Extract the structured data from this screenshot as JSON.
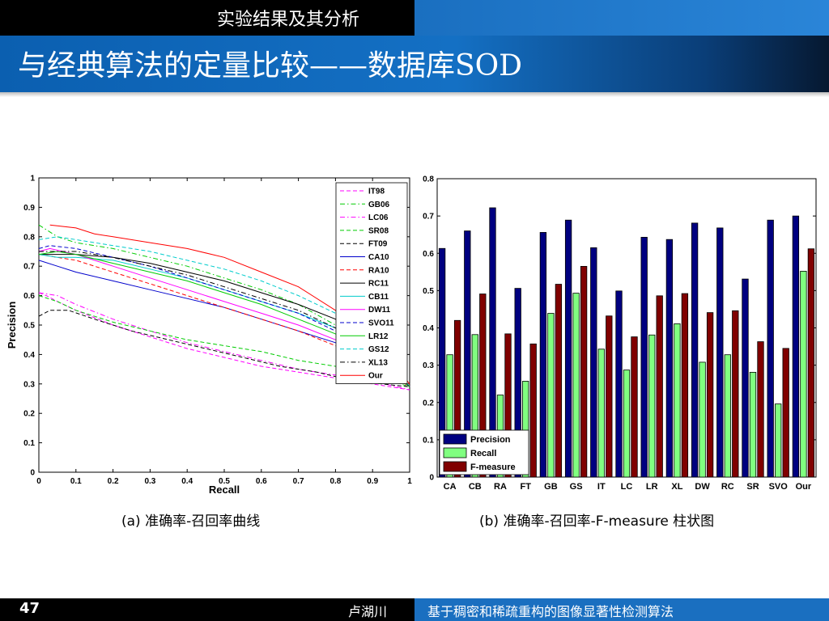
{
  "header": {
    "section_title": "实验结果及其分析",
    "slide_title": "与经典算法的定量比较——数据库SOD"
  },
  "captions": {
    "left": "(a) 准确率-召回率曲线",
    "right": "(b) 准确率-召回率-F-measure 柱状图"
  },
  "footer": {
    "page_number": "47",
    "author": "卢湖川",
    "title": "基于稠密和稀疏重构的图像显著性检测算法"
  },
  "chart_data": [
    {
      "type": "line",
      "xlabel": "Recall",
      "ylabel": "Precision",
      "xlim": [
        0,
        1
      ],
      "ylim": [
        0,
        1
      ],
      "xticks": [
        "0",
        "0.1",
        "0.2",
        "0.3",
        "0.4",
        "0.5",
        "0.6",
        "0.7",
        "0.8",
        "0.9",
        "1"
      ],
      "yticks": [
        "0",
        "0.1",
        "0.2",
        "0.3",
        "0.4",
        "0.5",
        "0.6",
        "0.7",
        "0.8",
        "0.9",
        "1"
      ],
      "grid": false,
      "legend_position": "top-right",
      "series": [
        {
          "name": "IT98",
          "color": "#ff00ff",
          "dash": "dashed",
          "points": [
            [
              0.0,
              0.61
            ],
            [
              0.02,
              0.6
            ],
            [
              0.05,
              0.58
            ],
            [
              0.1,
              0.55
            ],
            [
              0.2,
              0.5
            ],
            [
              0.3,
              0.46
            ],
            [
              0.4,
              0.42
            ],
            [
              0.5,
              0.39
            ],
            [
              0.6,
              0.36
            ],
            [
              0.7,
              0.34
            ],
            [
              0.8,
              0.32
            ],
            [
              0.9,
              0.3
            ],
            [
              1.0,
              0.28
            ]
          ]
        },
        {
          "name": "GB06",
          "color": "#00cc00",
          "dash": "dashdot",
          "points": [
            [
              0.0,
              0.84
            ],
            [
              0.05,
              0.8
            ],
            [
              0.1,
              0.78
            ],
            [
              0.2,
              0.76
            ],
            [
              0.3,
              0.73
            ],
            [
              0.4,
              0.7
            ],
            [
              0.5,
              0.66
            ],
            [
              0.6,
              0.62
            ],
            [
              0.7,
              0.57
            ],
            [
              0.8,
              0.5
            ],
            [
              0.9,
              0.4
            ],
            [
              1.0,
              0.29
            ]
          ]
        },
        {
          "name": "LC06",
          "color": "#ff00ff",
          "dash": "dashdot",
          "points": [
            [
              0.0,
              0.61
            ],
            [
              0.05,
              0.6
            ],
            [
              0.1,
              0.57
            ],
            [
              0.2,
              0.52
            ],
            [
              0.3,
              0.48
            ],
            [
              0.4,
              0.44
            ],
            [
              0.5,
              0.41
            ],
            [
              0.6,
              0.38
            ],
            [
              0.7,
              0.35
            ],
            [
              0.8,
              0.33
            ],
            [
              0.9,
              0.31
            ],
            [
              1.0,
              0.28
            ]
          ]
        },
        {
          "name": "SR08",
          "color": "#00cc00",
          "dash": "dashed",
          "points": [
            [
              0.0,
              0.6
            ],
            [
              0.05,
              0.58
            ],
            [
              0.1,
              0.55
            ],
            [
              0.2,
              0.51
            ],
            [
              0.3,
              0.48
            ],
            [
              0.4,
              0.45
            ],
            [
              0.5,
              0.43
            ],
            [
              0.6,
              0.41
            ],
            [
              0.7,
              0.38
            ],
            [
              0.8,
              0.36
            ],
            [
              0.9,
              0.33
            ],
            [
              1.0,
              0.29
            ]
          ]
        },
        {
          "name": "FT09",
          "color": "#000000",
          "dash": "dashed",
          "points": [
            [
              0.0,
              0.53
            ],
            [
              0.03,
              0.55
            ],
            [
              0.08,
              0.55
            ],
            [
              0.15,
              0.52
            ],
            [
              0.25,
              0.48
            ],
            [
              0.35,
              0.45
            ],
            [
              0.45,
              0.42
            ],
            [
              0.55,
              0.39
            ],
            [
              0.65,
              0.36
            ],
            [
              0.75,
              0.34
            ],
            [
              0.85,
              0.31
            ],
            [
              1.0,
              0.29
            ]
          ]
        },
        {
          "name": "CA10",
          "color": "#0000cc",
          "dash": "solid",
          "points": [
            [
              0.0,
              0.72
            ],
            [
              0.05,
              0.7
            ],
            [
              0.1,
              0.68
            ],
            [
              0.2,
              0.65
            ],
            [
              0.3,
              0.62
            ],
            [
              0.4,
              0.59
            ],
            [
              0.5,
              0.56
            ],
            [
              0.6,
              0.52
            ],
            [
              0.7,
              0.48
            ],
            [
              0.8,
              0.44
            ],
            [
              0.9,
              0.38
            ],
            [
              1.0,
              0.29
            ]
          ]
        },
        {
          "name": "RA10",
          "color": "#ff0000",
          "dash": "dashed",
          "points": [
            [
              0.0,
              0.74
            ],
            [
              0.05,
              0.73
            ],
            [
              0.1,
              0.72
            ],
            [
              0.2,
              0.68
            ],
            [
              0.3,
              0.64
            ],
            [
              0.4,
              0.6
            ],
            [
              0.5,
              0.56
            ],
            [
              0.6,
              0.52
            ],
            [
              0.7,
              0.48
            ],
            [
              0.8,
              0.43
            ],
            [
              0.9,
              0.37
            ],
            [
              1.0,
              0.29
            ]
          ]
        },
        {
          "name": "RC11",
          "color": "#000000",
          "dash": "solid",
          "points": [
            [
              0.0,
              0.74
            ],
            [
              0.05,
              0.74
            ],
            [
              0.1,
              0.74
            ],
            [
              0.2,
              0.73
            ],
            [
              0.3,
              0.71
            ],
            [
              0.4,
              0.68
            ],
            [
              0.5,
              0.65
            ],
            [
              0.6,
              0.61
            ],
            [
              0.7,
              0.57
            ],
            [
              0.8,
              0.52
            ],
            [
              0.9,
              0.42
            ],
            [
              1.0,
              0.29
            ]
          ]
        },
        {
          "name": "CB11",
          "color": "#00cccc",
          "dash": "solid",
          "points": [
            [
              0.0,
              0.74
            ],
            [
              0.05,
              0.73
            ],
            [
              0.1,
              0.73
            ],
            [
              0.2,
              0.72
            ],
            [
              0.3,
              0.69
            ],
            [
              0.4,
              0.66
            ],
            [
              0.5,
              0.62
            ],
            [
              0.6,
              0.58
            ],
            [
              0.7,
              0.54
            ],
            [
              0.8,
              0.49
            ],
            [
              0.9,
              0.4
            ],
            [
              1.0,
              0.29
            ]
          ]
        },
        {
          "name": "DW11",
          "color": "#ff00ff",
          "dash": "solid",
          "points": [
            [
              0.0,
              0.75
            ],
            [
              0.03,
              0.76
            ],
            [
              0.1,
              0.74
            ],
            [
              0.2,
              0.7
            ],
            [
              0.3,
              0.66
            ],
            [
              0.4,
              0.62
            ],
            [
              0.5,
              0.58
            ],
            [
              0.6,
              0.54
            ],
            [
              0.7,
              0.5
            ],
            [
              0.8,
              0.45
            ],
            [
              0.9,
              0.38
            ],
            [
              1.0,
              0.29
            ]
          ]
        },
        {
          "name": "SVO11",
          "color": "#0000cc",
          "dash": "dashed",
          "points": [
            [
              0.0,
              0.76
            ],
            [
              0.03,
              0.77
            ],
            [
              0.1,
              0.76
            ],
            [
              0.2,
              0.73
            ],
            [
              0.3,
              0.7
            ],
            [
              0.4,
              0.66
            ],
            [
              0.5,
              0.62
            ],
            [
              0.6,
              0.58
            ],
            [
              0.7,
              0.54
            ],
            [
              0.8,
              0.48
            ],
            [
              0.9,
              0.4
            ],
            [
              1.0,
              0.29
            ]
          ]
        },
        {
          "name": "LR12",
          "color": "#00cc00",
          "dash": "solid",
          "points": [
            [
              0.0,
              0.74
            ],
            [
              0.05,
              0.75
            ],
            [
              0.1,
              0.74
            ],
            [
              0.2,
              0.71
            ],
            [
              0.3,
              0.68
            ],
            [
              0.4,
              0.65
            ],
            [
              0.5,
              0.61
            ],
            [
              0.6,
              0.57
            ],
            [
              0.7,
              0.52
            ],
            [
              0.8,
              0.47
            ],
            [
              0.9,
              0.39
            ],
            [
              1.0,
              0.29
            ]
          ]
        },
        {
          "name": "GS12",
          "color": "#00cccc",
          "dash": "dashed",
          "points": [
            [
              0.0,
              0.79
            ],
            [
              0.05,
              0.8
            ],
            [
              0.1,
              0.79
            ],
            [
              0.2,
              0.77
            ],
            [
              0.3,
              0.75
            ],
            [
              0.4,
              0.72
            ],
            [
              0.5,
              0.69
            ],
            [
              0.6,
              0.65
            ],
            [
              0.7,
              0.6
            ],
            [
              0.8,
              0.54
            ],
            [
              0.9,
              0.44
            ],
            [
              1.0,
              0.29
            ]
          ]
        },
        {
          "name": "XL13",
          "color": "#000000",
          "dash": "dashdot",
          "points": [
            [
              0.0,
              0.75
            ],
            [
              0.05,
              0.75
            ],
            [
              0.1,
              0.75
            ],
            [
              0.2,
              0.73
            ],
            [
              0.3,
              0.7
            ],
            [
              0.4,
              0.67
            ],
            [
              0.5,
              0.63
            ],
            [
              0.6,
              0.59
            ],
            [
              0.7,
              0.55
            ],
            [
              0.8,
              0.49
            ],
            [
              0.9,
              0.41
            ],
            [
              1.0,
              0.29
            ]
          ]
        },
        {
          "name": "Our",
          "color": "#ff0000",
          "dash": "solid",
          "points": [
            [
              0.03,
              0.84
            ],
            [
              0.1,
              0.83
            ],
            [
              0.15,
              0.81
            ],
            [
              0.2,
              0.8
            ],
            [
              0.3,
              0.78
            ],
            [
              0.4,
              0.76
            ],
            [
              0.5,
              0.73
            ],
            [
              0.6,
              0.68
            ],
            [
              0.7,
              0.63
            ],
            [
              0.8,
              0.55
            ],
            [
              0.9,
              0.45
            ],
            [
              1.0,
              0.3
            ]
          ]
        }
      ]
    },
    {
      "type": "bar",
      "categories": [
        "CA",
        "CB",
        "RA",
        "FT",
        "GB",
        "GS",
        "IT",
        "LC",
        "LR",
        "XL",
        "DW",
        "RC",
        "SR",
        "SVO",
        "Our"
      ],
      "ylim": [
        0,
        0.8
      ],
      "yticks": [
        "0",
        "0.1",
        "0.2",
        "0.3",
        "0.4",
        "0.5",
        "0.6",
        "0.7",
        "0.8"
      ],
      "grid": false,
      "legend_position": "bottom-left",
      "series": [
        {
          "name": "Precision",
          "color": "#000080",
          "values": [
            0.613,
            0.66,
            0.722,
            0.506,
            0.656,
            0.689,
            0.615,
            0.499,
            0.643,
            0.637,
            0.681,
            0.668,
            0.531,
            0.689,
            0.7
          ]
        },
        {
          "name": "Recall",
          "color": "#80ff80",
          "values": [
            0.328,
            0.382,
            0.22,
            0.257,
            0.439,
            0.493,
            0.343,
            0.287,
            0.381,
            0.411,
            0.308,
            0.328,
            0.281,
            0.196,
            0.552
          ]
        },
        {
          "name": "F-measure",
          "color": "#800000",
          "values": [
            0.42,
            0.491,
            0.384,
            0.357,
            0.517,
            0.565,
            0.432,
            0.376,
            0.486,
            0.492,
            0.441,
            0.446,
            0.363,
            0.345,
            0.612
          ]
        }
      ]
    }
  ]
}
